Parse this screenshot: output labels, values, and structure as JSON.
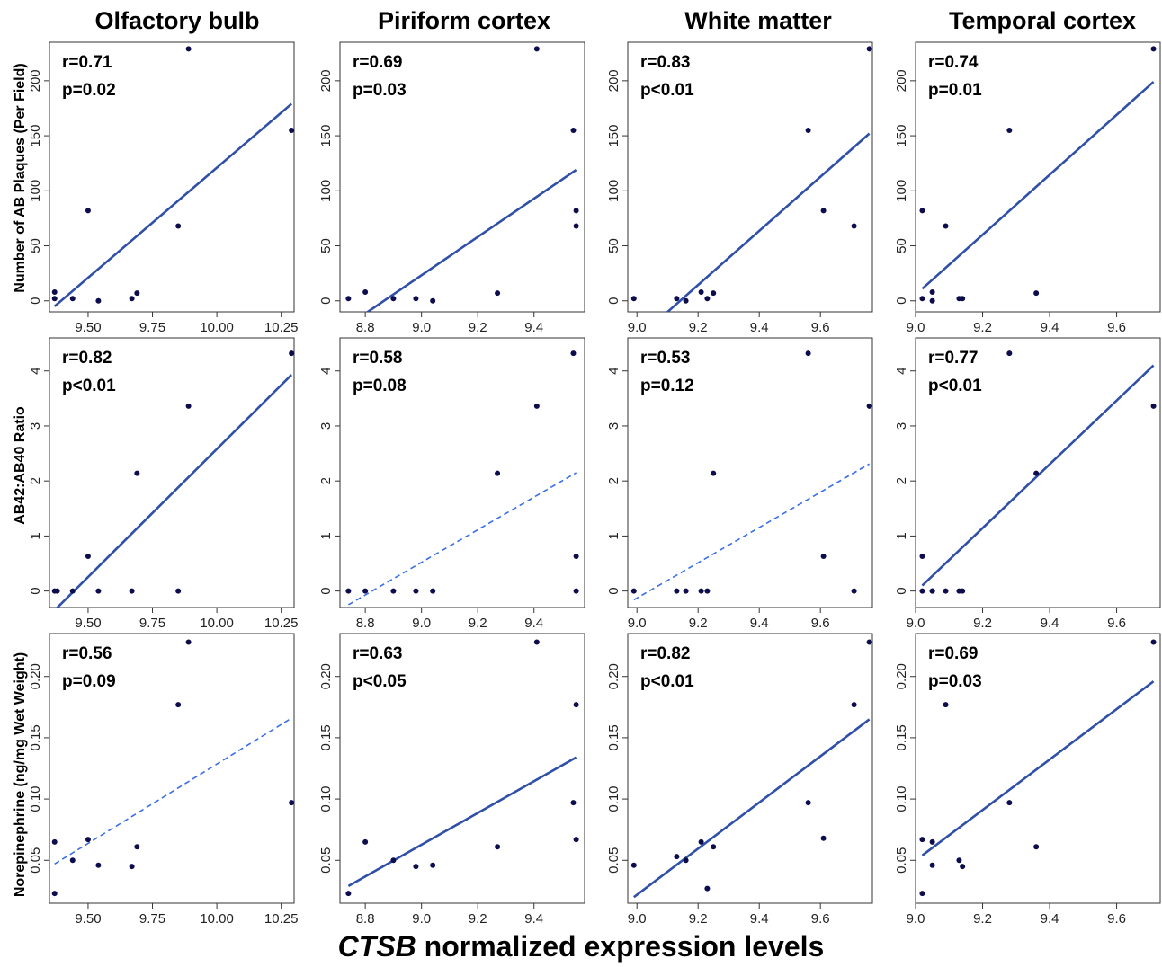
{
  "figure": {
    "xlabel_italic": "CTSB",
    "xlabel_rest": " normalized expression levels",
    "columns": [
      "Olfactory bulb",
      "Piriform cortex",
      "White matter",
      "Temporal cortex"
    ],
    "row_labels": [
      "Number of AB Plaques (Per Field)",
      "AB42:AB40 Ratio",
      "Norepinephrine (ng/mg Wet Weight)"
    ]
  },
  "colors": {
    "point": "#0d0d4d",
    "fit_significant": "#3050a8",
    "fit_nonsignificant": "#3a6ee8"
  },
  "chart_data": [
    {
      "type": "scatter",
      "row": 0,
      "col": 0,
      "r_label": "r=0.71",
      "p_label": "p=0.02",
      "significant": true,
      "xlim": [
        9.35,
        10.3
      ],
      "ylim": [
        -10,
        235
      ],
      "xticks": [
        9.5,
        9.75,
        10.0,
        10.25
      ],
      "xtick_labels": [
        "9.50",
        "9.75",
        "10.00",
        "10.25"
      ],
      "yticks": [
        0,
        50,
        100,
        150,
        200
      ],
      "ytick_labels": [
        "0",
        "50",
        "100",
        "150",
        "200"
      ],
      "x": [
        9.37,
        9.37,
        9.44,
        9.5,
        9.54,
        9.67,
        9.69,
        9.85,
        9.89,
        10.29
      ],
      "y": [
        2,
        8,
        2,
        82,
        0,
        2,
        7,
        68,
        229,
        155
      ],
      "fit": [
        [
          9.37,
          -5
        ],
        [
          10.29,
          179
        ]
      ]
    },
    {
      "type": "scatter",
      "row": 0,
      "col": 1,
      "r_label": "r=0.69",
      "p_label": "p=0.03",
      "significant": true,
      "xlim": [
        8.71,
        9.58
      ],
      "ylim": [
        -10,
        235
      ],
      "xticks": [
        8.8,
        9.0,
        9.2,
        9.4
      ],
      "xtick_labels": [
        "8.8",
        "9.0",
        "9.2",
        "9.4"
      ],
      "yticks": [
        0,
        50,
        100,
        150,
        200
      ],
      "ytick_labels": [
        "0",
        "50",
        "100",
        "150",
        "200"
      ],
      "x": [
        8.74,
        8.8,
        8.9,
        8.98,
        9.04,
        9.27,
        9.41,
        9.54,
        9.55,
        9.55
      ],
      "y": [
        2,
        8,
        2,
        2,
        0,
        7,
        229,
        155,
        82,
        68
      ],
      "fit": [
        [
          8.74,
          -22
        ],
        [
          9.55,
          119
        ]
      ]
    },
    {
      "type": "scatter",
      "row": 0,
      "col": 2,
      "r_label": "r=0.83",
      "p_label": "p<0.01",
      "significant": true,
      "xlim": [
        8.97,
        9.77
      ],
      "ylim": [
        -10,
        235
      ],
      "xticks": [
        9.0,
        9.2,
        9.4,
        9.6
      ],
      "xtick_labels": [
        "9.0",
        "9.2",
        "9.4",
        "9.6"
      ],
      "yticks": [
        0,
        50,
        100,
        150,
        200
      ],
      "ytick_labels": [
        "0",
        "50",
        "100",
        "150",
        "200"
      ],
      "x": [
        8.99,
        9.13,
        9.16,
        9.21,
        9.23,
        9.25,
        9.56,
        9.61,
        9.71,
        9.76
      ],
      "y": [
        2,
        2,
        0,
        8,
        2,
        7,
        155,
        82,
        68,
        229
      ],
      "fit": [
        [
          9.08,
          -15
        ],
        [
          9.76,
          152
        ]
      ]
    },
    {
      "type": "scatter",
      "row": 0,
      "col": 3,
      "r_label": "r=0.74",
      "p_label": "p=0.01",
      "significant": true,
      "xlim": [
        9.0,
        9.73
      ],
      "ylim": [
        -10,
        235
      ],
      "xticks": [
        9.0,
        9.2,
        9.4,
        9.6
      ],
      "xtick_labels": [
        "9.0",
        "9.2",
        "9.4",
        "9.6"
      ],
      "yticks": [
        0,
        50,
        100,
        150,
        200
      ],
      "ytick_labels": [
        "0",
        "50",
        "100",
        "150",
        "200"
      ],
      "x": [
        9.02,
        9.02,
        9.05,
        9.05,
        9.09,
        9.13,
        9.14,
        9.28,
        9.36,
        9.71
      ],
      "y": [
        82,
        2,
        8,
        0,
        68,
        2,
        2,
        155,
        7,
        229
      ],
      "fit": [
        [
          9.02,
          11
        ],
        [
          9.71,
          199
        ]
      ]
    },
    {
      "type": "scatter",
      "row": 1,
      "col": 0,
      "r_label": "r=0.82",
      "p_label": "p<0.01",
      "significant": true,
      "xlim": [
        9.35,
        10.3
      ],
      "ylim": [
        -0.3,
        4.6
      ],
      "xticks": [
        9.5,
        9.75,
        10.0,
        10.25
      ],
      "xtick_labels": [
        "9.50",
        "9.75",
        "10.00",
        "10.25"
      ],
      "yticks": [
        0,
        1,
        2,
        3,
        4
      ],
      "ytick_labels": [
        "0",
        "1",
        "2",
        "3",
        "4"
      ],
      "x": [
        9.37,
        9.38,
        9.44,
        9.5,
        9.54,
        9.67,
        9.69,
        9.85,
        9.89,
        10.29
      ],
      "y": [
        0,
        0,
        0,
        0.63,
        0,
        0,
        2.14,
        0,
        3.36,
        4.32
      ],
      "fit": [
        [
          9.37,
          -0.35
        ],
        [
          10.29,
          3.93
        ]
      ]
    },
    {
      "type": "scatter",
      "row": 1,
      "col": 1,
      "r_label": "r=0.58",
      "p_label": "p=0.08",
      "significant": false,
      "xlim": [
        8.71,
        9.58
      ],
      "ylim": [
        -0.3,
        4.6
      ],
      "xticks": [
        8.8,
        9.0,
        9.2,
        9.4
      ],
      "xtick_labels": [
        "8.8",
        "9.0",
        "9.2",
        "9.4"
      ],
      "yticks": [
        0,
        1,
        2,
        3,
        4
      ],
      "ytick_labels": [
        "0",
        "1",
        "2",
        "3",
        "4"
      ],
      "x": [
        8.74,
        8.8,
        8.9,
        8.98,
        9.04,
        9.27,
        9.41,
        9.54,
        9.55,
        9.55
      ],
      "y": [
        0,
        0,
        0,
        0,
        0,
        2.14,
        3.36,
        4.32,
        0.63,
        0
      ],
      "fit": [
        [
          8.74,
          -0.25
        ],
        [
          9.55,
          2.15
        ]
      ]
    },
    {
      "type": "scatter",
      "row": 1,
      "col": 2,
      "r_label": "r=0.53",
      "p_label": "p=0.12",
      "significant": false,
      "xlim": [
        8.97,
        9.77
      ],
      "ylim": [
        -0.3,
        4.6
      ],
      "xticks": [
        9.0,
        9.2,
        9.4,
        9.6
      ],
      "xtick_labels": [
        "9.0",
        "9.2",
        "9.4",
        "9.6"
      ],
      "yticks": [
        0,
        1,
        2,
        3,
        4
      ],
      "ytick_labels": [
        "0",
        "1",
        "2",
        "3",
        "4"
      ],
      "x": [
        8.99,
        9.13,
        9.16,
        9.21,
        9.23,
        9.25,
        9.56,
        9.61,
        9.71,
        9.76
      ],
      "y": [
        0,
        0,
        0,
        0,
        0,
        2.14,
        4.32,
        0.63,
        0,
        3.36
      ],
      "fit": [
        [
          8.99,
          -0.16
        ],
        [
          9.76,
          2.31
        ]
      ]
    },
    {
      "type": "scatter",
      "row": 1,
      "col": 3,
      "r_label": "r=0.77",
      "p_label": "p<0.01",
      "significant": true,
      "xlim": [
        9.0,
        9.73
      ],
      "ylim": [
        -0.3,
        4.6
      ],
      "xticks": [
        9.0,
        9.2,
        9.4,
        9.6
      ],
      "xtick_labels": [
        "9.0",
        "9.2",
        "9.4",
        "9.6"
      ],
      "yticks": [
        0,
        1,
        2,
        3,
        4
      ],
      "ytick_labels": [
        "0",
        "1",
        "2",
        "3",
        "4"
      ],
      "x": [
        9.02,
        9.02,
        9.05,
        9.05,
        9.09,
        9.13,
        9.14,
        9.28,
        9.36,
        9.71
      ],
      "y": [
        0.63,
        0,
        0,
        0,
        0,
        0,
        0,
        4.32,
        2.14,
        3.36
      ],
      "fit": [
        [
          9.02,
          0.1
        ],
        [
          9.71,
          4.1
        ]
      ]
    },
    {
      "type": "scatter",
      "row": 2,
      "col": 0,
      "r_label": "r=0.56",
      "p_label": "p=0.09",
      "significant": false,
      "xlim": [
        9.35,
        10.3
      ],
      "ylim": [
        0.015,
        0.235
      ],
      "xticks": [
        9.5,
        9.75,
        10.0,
        10.25
      ],
      "xtick_labels": [
        "9.50",
        "9.75",
        "10.00",
        "10.25"
      ],
      "yticks": [
        0.05,
        0.1,
        0.15,
        0.2
      ],
      "ytick_labels": [
        "0.05",
        "0.10",
        "0.15",
        "0.20"
      ],
      "x": [
        9.37,
        9.37,
        9.44,
        9.5,
        9.54,
        9.67,
        9.69,
        9.85,
        9.89,
        10.29
      ],
      "y": [
        0.023,
        0.065,
        0.05,
        0.067,
        0.046,
        0.045,
        0.061,
        0.177,
        0.228,
        0.097
      ],
      "fit": [
        [
          9.37,
          0.047
        ],
        [
          10.29,
          0.166
        ]
      ]
    },
    {
      "type": "scatter",
      "row": 2,
      "col": 1,
      "r_label": "r=0.63",
      "p_label": "p<0.05",
      "significant": true,
      "xlim": [
        8.71,
        9.58
      ],
      "ylim": [
        0.015,
        0.235
      ],
      "xticks": [
        8.8,
        9.0,
        9.2,
        9.4
      ],
      "xtick_labels": [
        "8.8",
        "9.0",
        "9.2",
        "9.4"
      ],
      "yticks": [
        0.05,
        0.1,
        0.15,
        0.2
      ],
      "ytick_labels": [
        "0.05",
        "0.10",
        "0.15",
        "0.20"
      ],
      "x": [
        8.74,
        8.8,
        8.9,
        8.98,
        9.04,
        9.27,
        9.41,
        9.54,
        9.55,
        9.55
      ],
      "y": [
        0.023,
        0.065,
        0.05,
        0.045,
        0.046,
        0.061,
        0.228,
        0.097,
        0.067,
        0.177
      ],
      "fit": [
        [
          8.74,
          0.029
        ],
        [
          9.55,
          0.134
        ]
      ]
    },
    {
      "type": "scatter",
      "row": 2,
      "col": 2,
      "r_label": "r=0.82",
      "p_label": "p<0.01",
      "significant": true,
      "xlim": [
        8.97,
        9.77
      ],
      "ylim": [
        0.015,
        0.235
      ],
      "xticks": [
        9.0,
        9.2,
        9.4,
        9.6
      ],
      "xtick_labels": [
        "9.0",
        "9.2",
        "9.4",
        "9.6"
      ],
      "yticks": [
        0.05,
        0.1,
        0.15,
        0.2
      ],
      "ytick_labels": [
        "0.05",
        "0.10",
        "0.15",
        "0.20"
      ],
      "x": [
        8.99,
        9.13,
        9.16,
        9.21,
        9.23,
        9.25,
        9.56,
        9.61,
        9.71,
        9.76
      ],
      "y": [
        0.046,
        0.053,
        0.05,
        0.065,
        0.027,
        0.061,
        0.097,
        0.068,
        0.177,
        0.228
      ],
      "fit": [
        [
          8.99,
          0.02
        ],
        [
          9.76,
          0.165
        ]
      ]
    },
    {
      "type": "scatter",
      "row": 2,
      "col": 3,
      "r_label": "r=0.69",
      "p_label": "p=0.03",
      "significant": true,
      "xlim": [
        9.0,
        9.73
      ],
      "ylim": [
        0.015,
        0.235
      ],
      "xticks": [
        9.0,
        9.2,
        9.4,
        9.6
      ],
      "xtick_labels": [
        "9.0",
        "9.2",
        "9.4",
        "9.6"
      ],
      "yticks": [
        0.05,
        0.1,
        0.15,
        0.2
      ],
      "ytick_labels": [
        "0.05",
        "0.10",
        "0.15",
        "0.20"
      ],
      "x": [
        9.02,
        9.02,
        9.05,
        9.05,
        9.09,
        9.13,
        9.14,
        9.28,
        9.36,
        9.71
      ],
      "y": [
        0.023,
        0.067,
        0.046,
        0.065,
        0.177,
        0.05,
        0.045,
        0.097,
        0.061,
        0.228
      ],
      "fit": [
        [
          9.02,
          0.054
        ],
        [
          9.71,
          0.196
        ]
      ]
    }
  ]
}
